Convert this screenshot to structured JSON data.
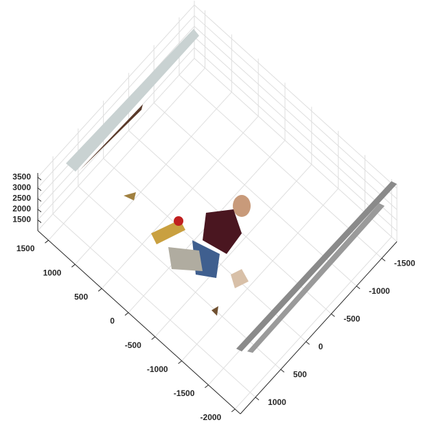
{
  "chart_data": {
    "type": "scatter3",
    "xlim": [
      -1800,
      1300
    ],
    "xticks": [
      -1500,
      -1000,
      -500,
      0,
      500,
      1000
    ],
    "ylim": [
      -2100,
      1700
    ],
    "yticks": [
      -2000,
      -1500,
      -1000,
      -500,
      0,
      500,
      1000,
      1500
    ],
    "zlim": [
      1000,
      3700
    ],
    "zticks": [
      1500,
      2000,
      2500,
      3000,
      3500
    ],
    "grid": true
  }
}
